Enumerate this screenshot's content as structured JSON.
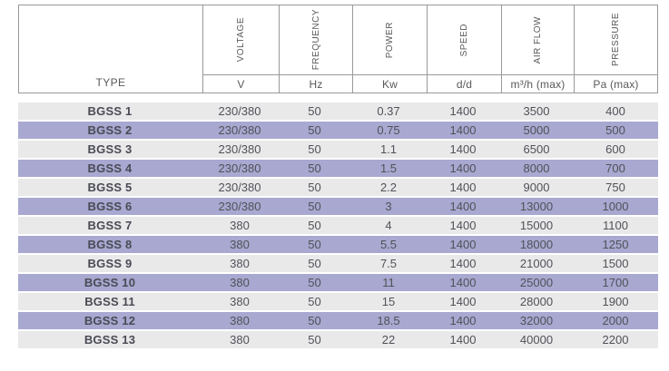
{
  "colors": {
    "border": "#98999b",
    "header_text": "#58595b",
    "row_gray": "#e9e9ea",
    "row_purple": "#a8a8d1",
    "data_text": "#515158",
    "label_text": "#4a4a55",
    "background": "#ffffff"
  },
  "table": {
    "type_header": "TYPE",
    "columns": [
      {
        "key": "voltage",
        "label": "VOLTAGE",
        "unit": "V"
      },
      {
        "key": "frequency",
        "label": "FREQUENCY",
        "unit": "Hz"
      },
      {
        "key": "power",
        "label": "POWER",
        "unit": "Kw"
      },
      {
        "key": "speed",
        "label": "SPEED",
        "unit": "d/d"
      },
      {
        "key": "airflow",
        "label": "AIR FLOW",
        "unit": "m³/h (max)"
      },
      {
        "key": "pressure",
        "label": "PRESSURE",
        "unit": "Pa (max)"
      }
    ],
    "rows": [
      {
        "type": "BGSS 1",
        "shade": "gray",
        "values": [
          "230/380",
          "50",
          "0.37",
          "1400",
          "3500",
          "400"
        ]
      },
      {
        "type": "BGSS 2",
        "shade": "purple",
        "values": [
          "230/380",
          "50",
          "0.75",
          "1400",
          "5000",
          "500"
        ]
      },
      {
        "type": "BGSS 3",
        "shade": "gray",
        "values": [
          "230/380",
          "50",
          "1.1",
          "1400",
          "6500",
          "600"
        ]
      },
      {
        "type": "BGSS 4",
        "shade": "purple",
        "values": [
          "230/380",
          "50",
          "1.5",
          "1400",
          "8000",
          "700"
        ]
      },
      {
        "type": "BGSS 5",
        "shade": "gray",
        "values": [
          "230/380",
          "50",
          "2.2",
          "1400",
          "9000",
          "750"
        ]
      },
      {
        "type": "BGSS 6",
        "shade": "purple",
        "values": [
          "230/380",
          "50",
          "3",
          "1400",
          "13000",
          "1000"
        ]
      },
      {
        "type": "BGSS 7",
        "shade": "gray",
        "values": [
          "380",
          "50",
          "4",
          "1400",
          "15000",
          "1100"
        ]
      },
      {
        "type": "BGSS 8",
        "shade": "purple",
        "values": [
          "380",
          "50",
          "5.5",
          "1400",
          "18000",
          "1250"
        ]
      },
      {
        "type": "BGSS 9",
        "shade": "gray",
        "values": [
          "380",
          "50",
          "7.5",
          "1400",
          "21000",
          "1500"
        ]
      },
      {
        "type": "BGSS 10",
        "shade": "purple",
        "values": [
          "380",
          "50",
          "11",
          "1400",
          "25000",
          "1700"
        ]
      },
      {
        "type": "BGSS 11",
        "shade": "gray",
        "values": [
          "380",
          "50",
          "15",
          "1400",
          "28000",
          "1900"
        ]
      },
      {
        "type": "BGSS 12",
        "shade": "purple",
        "values": [
          "380",
          "50",
          "18.5",
          "1400",
          "32000",
          "2000"
        ]
      },
      {
        "type": "BGSS 13",
        "shade": "gray",
        "values": [
          "380",
          "50",
          "22",
          "1400",
          "40000",
          "2200"
        ]
      }
    ]
  }
}
